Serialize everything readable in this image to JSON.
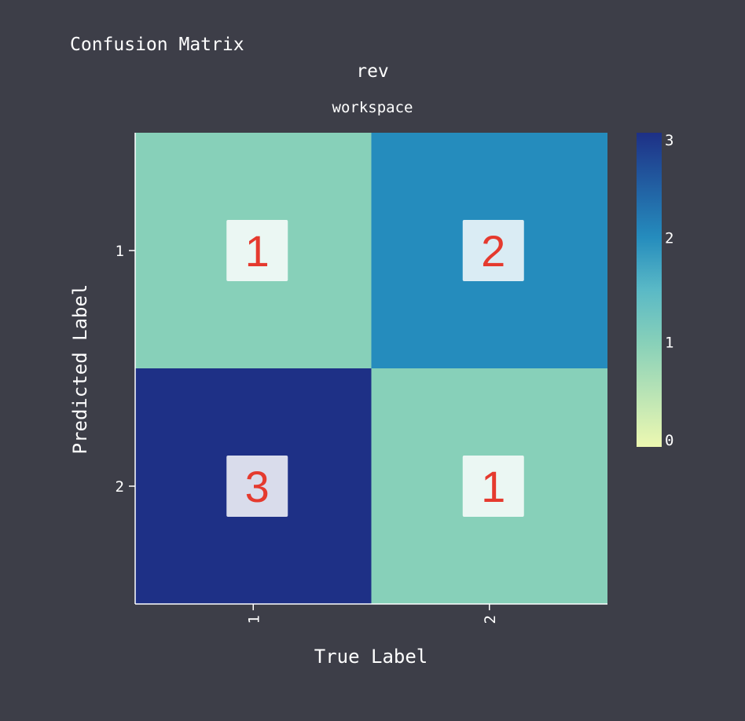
{
  "chart_data": {
    "type": "heatmap",
    "title": "Confusion Matrix",
    "subtitle": "rev",
    "subtitle2": "workspace",
    "xlabel": "True Label",
    "ylabel": "Predicted Label",
    "x_categories": [
      "1",
      "2"
    ],
    "y_categories": [
      "1",
      "2"
    ],
    "values": [
      [
        1,
        2
      ],
      [
        3,
        1
      ]
    ],
    "colorbar": {
      "min": 0,
      "max": 3,
      "ticks": [
        0,
        1,
        2,
        3
      ],
      "colormap": "YlGnBu"
    },
    "annotation_color": "#e53a2e",
    "grid": false
  }
}
